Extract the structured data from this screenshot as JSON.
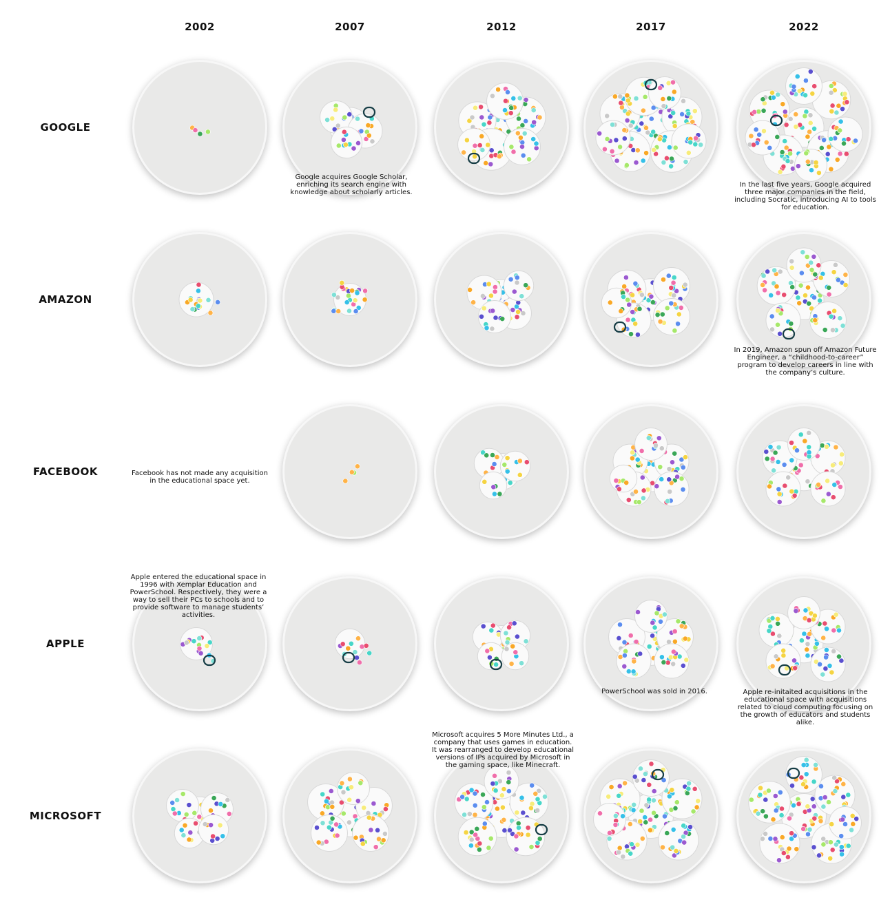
{
  "years": [
    "2002",
    "2007",
    "2012",
    "2017",
    "2022"
  ],
  "companies": [
    "GOOGLE",
    "AMAZON",
    "FACEBOOK",
    "APPLE",
    "MICROSOFT"
  ],
  "palette": [
    "#f9a826",
    "#ffb347",
    "#47d6c8",
    "#7ee0d6",
    "#e84d6f",
    "#5b8def",
    "#9b59d0",
    "#3aa757",
    "#a6e86a",
    "#f5d442",
    "#c9c9c9",
    "#f06eaa",
    "#5a4fcf",
    "#35c0e8",
    "#f7ec7a"
  ],
  "grid": [
    [
      {
        "clusters": [
          [
            0,
            0,
            4
          ]
        ],
        "highlight": null,
        "empty": false
      },
      {
        "clusters": [
          [
            0,
            0,
            18
          ],
          [
            -20,
            -15,
            10
          ],
          [
            22,
            5,
            12
          ],
          [
            -5,
            22,
            9
          ]
        ],
        "highlight": [
          28,
          -22
        ],
        "empty": false
      },
      {
        "clusters": [
          [
            0,
            0,
            25
          ],
          [
            -35,
            -10,
            15
          ],
          [
            35,
            -15,
            18
          ],
          [
            -15,
            32,
            20
          ],
          [
            30,
            28,
            14
          ],
          [
            -40,
            25,
            10
          ],
          [
            5,
            -38,
            14
          ]
        ],
        "highlight": [
          -40,
          45
        ],
        "empty": false
      },
      {
        "clusters": [
          [
            0,
            0,
            20
          ],
          [
            -45,
            -20,
            18
          ],
          [
            45,
            -15,
            18
          ],
          [
            -30,
            35,
            18
          ],
          [
            30,
            35,
            20
          ],
          [
            -10,
            -45,
            16
          ],
          [
            55,
            20,
            12
          ],
          [
            -55,
            15,
            12
          ],
          [
            20,
            -50,
            10
          ]
        ],
        "highlight": [
          0,
          -62
        ],
        "empty": false
      },
      {
        "clusters": [
          [
            0,
            0,
            18
          ],
          [
            -50,
            -25,
            18
          ],
          [
            40,
            -40,
            16
          ],
          [
            -30,
            40,
            18
          ],
          [
            35,
            35,
            20
          ],
          [
            0,
            -60,
            14
          ],
          [
            -60,
            15,
            12
          ],
          [
            60,
            10,
            12
          ],
          [
            10,
            55,
            10
          ]
        ],
        "highlight": [
          -40,
          -10
        ],
        "empty": false
      }
    ],
    [
      {
        "clusters": [
          [
            -5,
            0,
            12
          ],
          [
            12,
            10,
            5
          ]
        ],
        "highlight": null,
        "empty": false
      },
      {
        "clusters": [
          [
            0,
            0,
            10
          ],
          [
            -12,
            -15,
            5
          ],
          [
            15,
            -10,
            5
          ],
          [
            -10,
            15,
            5
          ]
        ],
        "highlight": null,
        "empty": false
      },
      {
        "clusters": [
          [
            0,
            0,
            18
          ],
          [
            -25,
            -10,
            12
          ],
          [
            20,
            20,
            10
          ],
          [
            -10,
            25,
            10
          ],
          [
            25,
            -20,
            8
          ]
        ],
        "highlight": null,
        "empty": false
      },
      {
        "clusters": [
          [
            0,
            0,
            20
          ],
          [
            -35,
            -15,
            16
          ],
          [
            30,
            -20,
            14
          ],
          [
            -25,
            30,
            12
          ],
          [
            30,
            25,
            14
          ],
          [
            -50,
            5,
            8
          ]
        ],
        "highlight": [
          -45,
          40
        ],
        "empty": false
      },
      {
        "clusters": [
          [
            0,
            0,
            18
          ],
          [
            -40,
            -20,
            16
          ],
          [
            40,
            -30,
            14
          ],
          [
            -30,
            30,
            12
          ],
          [
            35,
            30,
            14
          ],
          [
            0,
            -50,
            12
          ]
        ],
        "highlight": [
          -22,
          50
        ],
        "empty": false
      }
    ],
    [
      {
        "clusters": [],
        "highlight": null,
        "empty": true
      },
      {
        "clusters": [
          [
            0,
            -6,
            2
          ],
          [
            0,
            8,
            2
          ]
        ],
        "highlight": null,
        "empty": false
      },
      {
        "clusters": [
          [
            0,
            0,
            14
          ],
          [
            -18,
            -12,
            8
          ],
          [
            20,
            -8,
            8
          ],
          [
            -12,
            20,
            6
          ]
        ],
        "highlight": null,
        "empty": false
      },
      {
        "clusters": [
          [
            0,
            0,
            18
          ],
          [
            -30,
            -15,
            12
          ],
          [
            30,
            -15,
            12
          ],
          [
            -25,
            25,
            12
          ],
          [
            30,
            25,
            12
          ],
          [
            0,
            -40,
            10
          ],
          [
            -40,
            10,
            6
          ]
        ],
        "highlight": null,
        "empty": false
      },
      {
        "clusters": [
          [
            0,
            0,
            16
          ],
          [
            -35,
            -20,
            12
          ],
          [
            35,
            -20,
            12
          ],
          [
            -30,
            25,
            12
          ],
          [
            35,
            25,
            12
          ],
          [
            0,
            -40,
            10
          ]
        ],
        "highlight": null,
        "empty": false
      }
    ],
    [
      {
        "clusters": [
          [
            -5,
            0,
            10
          ],
          [
            10,
            15,
            5
          ]
        ],
        "highlight": [
          14,
          24
        ],
        "empty": false
      },
      {
        "clusters": [
          [
            0,
            0,
            8
          ],
          [
            18,
            15,
            4
          ]
        ],
        "highlight": [
          -2,
          20
        ],
        "empty": false
      },
      {
        "clusters": [
          [
            0,
            0,
            14
          ],
          [
            -20,
            -10,
            8
          ],
          [
            20,
            -12,
            8
          ],
          [
            -15,
            18,
            6
          ],
          [
            20,
            18,
            6
          ]
        ],
        "highlight": [
          -8,
          30
        ],
        "empty": false
      },
      {
        "clusters": [
          [
            0,
            0,
            22
          ],
          [
            -35,
            -10,
            14
          ],
          [
            35,
            -10,
            14
          ],
          [
            -25,
            25,
            12
          ],
          [
            30,
            25,
            12
          ],
          [
            0,
            -40,
            10
          ]
        ],
        "highlight": null,
        "empty": false
      },
      {
        "clusters": [
          [
            0,
            0,
            16
          ],
          [
            -40,
            -20,
            12
          ],
          [
            35,
            -25,
            12
          ],
          [
            -30,
            25,
            12
          ],
          [
            35,
            30,
            12
          ],
          [
            0,
            -45,
            10
          ]
        ],
        "highlight": [
          -28,
          38
        ],
        "empty": false
      }
    ],
    [
      {
        "clusters": [
          [
            0,
            0,
            16
          ],
          [
            -25,
            -15,
            10
          ],
          [
            25,
            -10,
            10
          ],
          [
            -15,
            25,
            8
          ],
          [
            20,
            20,
            8
          ]
        ],
        "highlight": null,
        "empty": false
      },
      {
        "clusters": [
          [
            0,
            0,
            20
          ],
          [
            -35,
            -20,
            14
          ],
          [
            35,
            -15,
            14
          ],
          [
            -30,
            25,
            14
          ],
          [
            30,
            25,
            14
          ],
          [
            5,
            -40,
            10
          ]
        ],
        "highlight": null,
        "empty": false
      },
      {
        "clusters": [
          [
            0,
            0,
            22
          ],
          [
            -40,
            -20,
            16
          ],
          [
            40,
            -20,
            16
          ],
          [
            -35,
            30,
            16
          ],
          [
            35,
            30,
            16
          ],
          [
            0,
            -50,
            12
          ]
        ],
        "highlight": [
          58,
          20
        ],
        "empty": false
      },
      {
        "clusters": [
          [
            0,
            0,
            24
          ],
          [
            -45,
            -25,
            18
          ],
          [
            45,
            -25,
            18
          ],
          [
            -35,
            35,
            18
          ],
          [
            40,
            35,
            18
          ],
          [
            0,
            -55,
            14
          ],
          [
            -60,
            5,
            10
          ]
        ],
        "highlight": [
          10,
          -60
        ],
        "empty": false
      },
      {
        "clusters": [
          [
            0,
            0,
            24
          ],
          [
            -50,
            -20,
            20
          ],
          [
            45,
            -30,
            18
          ],
          [
            -35,
            40,
            18
          ],
          [
            40,
            40,
            18
          ],
          [
            0,
            -60,
            14
          ],
          [
            60,
            10,
            10
          ]
        ],
        "highlight": [
          -15,
          -62
        ],
        "empty": false
      }
    ]
  ],
  "notes": {
    "google_2007": "Google acquires Google Scholar, enriching its search engine with knowledge about scholarly articles.",
    "google_2022": "In the last five years, Google acquired three major companies in the field, including Socratic, introducing AI to tools for education.",
    "amazon_2022": "In 2019, Amazon spun off Amazon Future Engineer, a “childhood-to-career” program to develop careers in line with the company’s culture.",
    "facebook_2002": "Facebook has not made any acquisition in the educational space yet.",
    "apple_2002": "Apple entered the educational space in 1996 with Xemplar Education and PowerSchool. Respectively, they were a way to sell their PCs to schools and to provide software to manage students’ activities.",
    "apple_2017": "PowerSchool was sold in 2016.",
    "apple_2022": "Apple re-initaited acquisitions in the educational space with acquisitions related to cloud computing focusing on the growth of educators and students alike.",
    "microsoft_2012": "Microsoft acquires 5 More Minutes Ltd., a company that uses games in education. It was rearranged to develop educational versions of IPs acquired by Microsoft  in the gaming space, like Minecraft."
  }
}
